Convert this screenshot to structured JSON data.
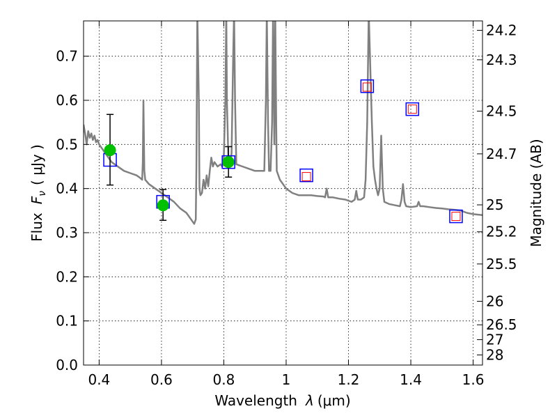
{
  "chart_data": {
    "type": "line",
    "xlabel_text": "Wavelength",
    "xlabel_symbol": "λ",
    "xlabel_unit": "(μm)",
    "ylabel_text": "Flux",
    "ylabel_symbol": "F",
    "ylabel_subscript": "ν",
    "ylabel_unit": "( μJy )",
    "y2label": "Magnitude (AB)",
    "xlim": [
      0.35,
      1.63
    ],
    "ylim": [
      0.0,
      0.78
    ],
    "grid": true,
    "x_ticks": [
      {
        "value": 0.4,
        "label": "0.4"
      },
      {
        "value": 0.6,
        "label": "0.6"
      },
      {
        "value": 0.8,
        "label": "0.8"
      },
      {
        "value": 1.0,
        "label": "1"
      },
      {
        "value": 1.2,
        "label": "1.2"
      },
      {
        "value": 1.4,
        "label": "1.4"
      },
      {
        "value": 1.6,
        "label": "1.6"
      }
    ],
    "y_ticks": [
      {
        "value": 0.0,
        "label": "0.0"
      },
      {
        "value": 0.1,
        "label": "0.1"
      },
      {
        "value": 0.2,
        "label": "0.2"
      },
      {
        "value": 0.3,
        "label": "0.3"
      },
      {
        "value": 0.4,
        "label": "0.4"
      },
      {
        "value": 0.5,
        "label": "0.5"
      },
      {
        "value": 0.6,
        "label": "0.6"
      },
      {
        "value": 0.7,
        "label": "0.7"
      }
    ],
    "y2_ticks": [
      {
        "value": 24.2,
        "label": "24.2"
      },
      {
        "value": 24.3,
        "label": "24.3"
      },
      {
        "value": 24.5,
        "label": "24.5"
      },
      {
        "value": 24.7,
        "label": "24.7"
      },
      {
        "value": 25.0,
        "label": "25"
      },
      {
        "value": 25.2,
        "label": "25.2"
      },
      {
        "value": 25.5,
        "label": "25.5"
      },
      {
        "value": 26.0,
        "label": "26"
      },
      {
        "value": 26.5,
        "label": "26.5"
      },
      {
        "value": 27.0,
        "label": "27"
      },
      {
        "value": 28.0,
        "label": "28"
      }
    ],
    "model_spectrum": {
      "color": "#808080",
      "points": [
        [
          0.35,
          0.545
        ],
        [
          0.355,
          0.525
        ],
        [
          0.36,
          0.5
        ],
        [
          0.365,
          0.53
        ],
        [
          0.37,
          0.515
        ],
        [
          0.375,
          0.525
        ],
        [
          0.38,
          0.51
        ],
        [
          0.385,
          0.52
        ],
        [
          0.39,
          0.505
        ],
        [
          0.395,
          0.51
        ],
        [
          0.4,
          0.5
        ],
        [
          0.41,
          0.49
        ],
        [
          0.42,
          0.48
        ],
        [
          0.43,
          0.47
        ],
        [
          0.44,
          0.46
        ],
        [
          0.45,
          0.455
        ],
        [
          0.46,
          0.45
        ],
        [
          0.47,
          0.445
        ],
        [
          0.48,
          0.44
        ],
        [
          0.5,
          0.435
        ],
        [
          0.52,
          0.43
        ],
        [
          0.53,
          0.425
        ],
        [
          0.538,
          0.42
        ],
        [
          0.54,
          0.46
        ],
        [
          0.542,
          0.6
        ],
        [
          0.545,
          0.44
        ],
        [
          0.548,
          0.42
        ],
        [
          0.56,
          0.41
        ],
        [
          0.58,
          0.4
        ],
        [
          0.6,
          0.39
        ],
        [
          0.62,
          0.38
        ],
        [
          0.64,
          0.37
        ],
        [
          0.66,
          0.355
        ],
        [
          0.68,
          0.345
        ],
        [
          0.69,
          0.335
        ],
        [
          0.7,
          0.325
        ],
        [
          0.705,
          0.32
        ],
        [
          0.71,
          0.33
        ],
        [
          0.712,
          0.45
        ],
        [
          0.715,
          0.8
        ],
        [
          0.72,
          0.6
        ],
        [
          0.722,
          0.4
        ],
        [
          0.725,
          0.385
        ],
        [
          0.73,
          0.39
        ],
        [
          0.735,
          0.42
        ],
        [
          0.74,
          0.4
        ],
        [
          0.745,
          0.43
        ],
        [
          0.75,
          0.405
        ],
        [
          0.755,
          0.44
        ],
        [
          0.76,
          0.47
        ],
        [
          0.765,
          0.45
        ],
        [
          0.77,
          0.46
        ],
        [
          0.78,
          0.45
        ],
        [
          0.79,
          0.455
        ],
        [
          0.795,
          0.45
        ],
        [
          0.8,
          0.47
        ],
        [
          0.805,
          0.6
        ],
        [
          0.808,
          0.8
        ],
        [
          0.81,
          0.6
        ],
        [
          0.815,
          0.455
        ],
        [
          0.82,
          0.45
        ],
        [
          0.825,
          0.48
        ],
        [
          0.83,
          0.7
        ],
        [
          0.833,
          0.8
        ],
        [
          0.836,
          0.6
        ],
        [
          0.84,
          0.455
        ],
        [
          0.86,
          0.45
        ],
        [
          0.88,
          0.445
        ],
        [
          0.9,
          0.44
        ],
        [
          0.92,
          0.44
        ],
        [
          0.93,
          0.44
        ],
        [
          0.935,
          0.6
        ],
        [
          0.938,
          0.8
        ],
        [
          0.942,
          0.55
        ],
        [
          0.945,
          0.44
        ],
        [
          0.95,
          0.44
        ],
        [
          0.955,
          0.55
        ],
        [
          0.958,
          0.8
        ],
        [
          0.962,
          0.5
        ],
        [
          0.965,
          0.8
        ],
        [
          0.968,
          0.55
        ],
        [
          0.97,
          0.44
        ],
        [
          0.98,
          0.42
        ],
        [
          1.0,
          0.4
        ],
        [
          1.02,
          0.39
        ],
        [
          1.04,
          0.385
        ],
        [
          1.06,
          0.385
        ],
        [
          1.08,
          0.385
        ],
        [
          1.1,
          0.383
        ],
        [
          1.12,
          0.382
        ],
        [
          1.125,
          0.38
        ],
        [
          1.13,
          0.4
        ],
        [
          1.135,
          0.38
        ],
        [
          1.15,
          0.38
        ],
        [
          1.17,
          0.377
        ],
        [
          1.19,
          0.375
        ],
        [
          1.21,
          0.37
        ],
        [
          1.22,
          0.375
        ],
        [
          1.225,
          0.395
        ],
        [
          1.23,
          0.375
        ],
        [
          1.24,
          0.375
        ],
        [
          1.25,
          0.38
        ],
        [
          1.255,
          0.42
        ],
        [
          1.26,
          0.55
        ],
        [
          1.265,
          0.8
        ],
        [
          1.275,
          0.55
        ],
        [
          1.28,
          0.45
        ],
        [
          1.285,
          0.42
        ],
        [
          1.29,
          0.4
        ],
        [
          1.295,
          0.385
        ],
        [
          1.3,
          0.4
        ],
        [
          1.305,
          0.52
        ],
        [
          1.31,
          0.4
        ],
        [
          1.315,
          0.37
        ],
        [
          1.33,
          0.365
        ],
        [
          1.35,
          0.362
        ],
        [
          1.365,
          0.36
        ],
        [
          1.37,
          0.375
        ],
        [
          1.375,
          0.41
        ],
        [
          1.38,
          0.37
        ],
        [
          1.385,
          0.36
        ],
        [
          1.4,
          0.358
        ],
        [
          1.42,
          0.36
        ],
        [
          1.425,
          0.37
        ],
        [
          1.43,
          0.36
        ],
        [
          1.44,
          0.36
        ],
        [
          1.46,
          0.358
        ],
        [
          1.48,
          0.356
        ],
        [
          1.5,
          0.355
        ],
        [
          1.52,
          0.353
        ],
        [
          1.54,
          0.352
        ],
        [
          1.56,
          0.35
        ],
        [
          1.58,
          0.345
        ],
        [
          1.6,
          0.342
        ],
        [
          1.63,
          0.34
        ]
      ]
    },
    "model_photometry": {
      "marker": "open-square",
      "color": "#0000ff",
      "points": [
        [
          0.435,
          0.465
        ],
        [
          0.605,
          0.37
        ],
        [
          0.815,
          0.46
        ],
        [
          1.065,
          0.43
        ],
        [
          1.26,
          0.632
        ],
        [
          1.405,
          0.58
        ],
        [
          1.545,
          0.337
        ]
      ]
    },
    "detections": {
      "marker": "filled-circle",
      "color": "#00c000",
      "points": [
        {
          "x": 0.435,
          "y": 0.487,
          "err_low": 0.408,
          "err_high": 0.568
        },
        {
          "x": 0.605,
          "y": 0.362,
          "err_low": 0.328,
          "err_high": 0.398
        },
        {
          "x": 0.815,
          "y": 0.46,
          "err_low": 0.426,
          "err_high": 0.495
        }
      ]
    },
    "upper_limits": {
      "marker": "small-open-square",
      "color": "#ff0000",
      "points": [
        [
          1.065,
          0.427
        ],
        [
          1.26,
          0.63
        ],
        [
          1.405,
          0.58
        ],
        [
          1.545,
          0.337
        ]
      ]
    }
  }
}
